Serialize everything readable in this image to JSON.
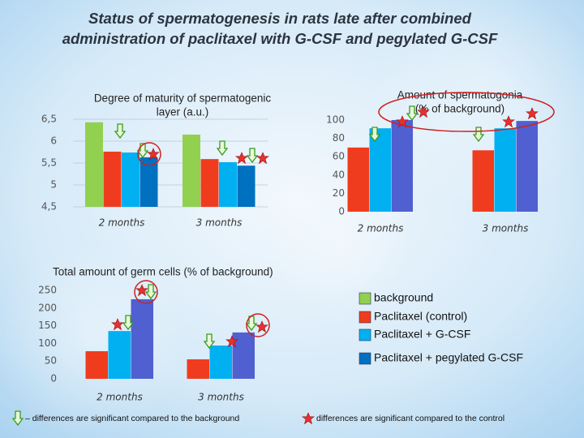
{
  "title": [
    "Status of spermatogenesis in rats late after combined",
    "administration of paclitaxel with G-CSF and pegylated G-CSF"
  ],
  "chart_data": [
    {
      "type": "bar",
      "title": [
        "Degree of maturity of spermatogenic",
        "layer (a.u.)"
      ],
      "categories": [
        "2 months",
        "3 months"
      ],
      "series": [
        {
          "name": "background",
          "color": "#92d050",
          "values": [
            6.43,
            6.15
          ]
        },
        {
          "name": "Paclitaxel (control)",
          "color": "#f03c1e",
          "values": [
            5.76,
            5.59
          ]
        },
        {
          "name": "Paclitaxel + G-CSF",
          "color": "#00b0f0",
          "values": [
            5.74,
            5.52
          ]
        },
        {
          "name": "Paclitaxel + pegylated G-CSF",
          "color": "#0070c0",
          "values": [
            5.63,
            5.44
          ]
        }
      ],
      "ylim": [
        4.5,
        6.5
      ],
      "yticks": [
        {
          "value": 4.5,
          "label": "4,5"
        },
        5,
        {
          "value": 5.5,
          "label": "5,5"
        },
        6,
        {
          "value": 6.5,
          "label": "6,5"
        }
      ],
      "grid": true
    },
    {
      "type": "bar",
      "title": [
        "Amount of spermatogonia",
        "(% of background)"
      ],
      "categories": [
        "2 months",
        "3 months"
      ],
      "series": [
        {
          "name": "Paclitaxel (control)",
          "color": "#f03c1e",
          "values": [
            70,
            67
          ]
        },
        {
          "name": "Paclitaxel + G-CSF",
          "color": "#00b0f0",
          "values": [
            91,
            91
          ]
        },
        {
          "name": "Paclitaxel + pegylated G-CSF",
          "color": "#5060d0",
          "values": [
            100,
            99
          ]
        }
      ],
      "ylim": [
        0,
        100
      ],
      "yticks": [
        0,
        20,
        40,
        60,
        80,
        100
      ],
      "grid": false
    },
    {
      "type": "bar",
      "title": [
        "Total amount of germ cells (% of background)"
      ],
      "categories": [
        "2 months",
        "3 months"
      ],
      "series": [
        {
          "name": "Paclitaxel (control)",
          "color": "#f03c1e",
          "values": [
            78,
            55
          ]
        },
        {
          "name": "Paclitaxel + G-CSF",
          "color": "#00b0f0",
          "values": [
            135,
            94
          ]
        },
        {
          "name": "Paclitaxel + pegylated G-CSF",
          "color": "#5060d0",
          "values": [
            225,
            131
          ]
        }
      ],
      "ylim": [
        0,
        250
      ],
      "yticks": [
        0,
        50,
        100,
        150,
        200,
        250
      ],
      "grid": false
    }
  ],
  "notes": [
    "– differences are significant compared to the background",
    "differences are significant compared to the control"
  ]
}
